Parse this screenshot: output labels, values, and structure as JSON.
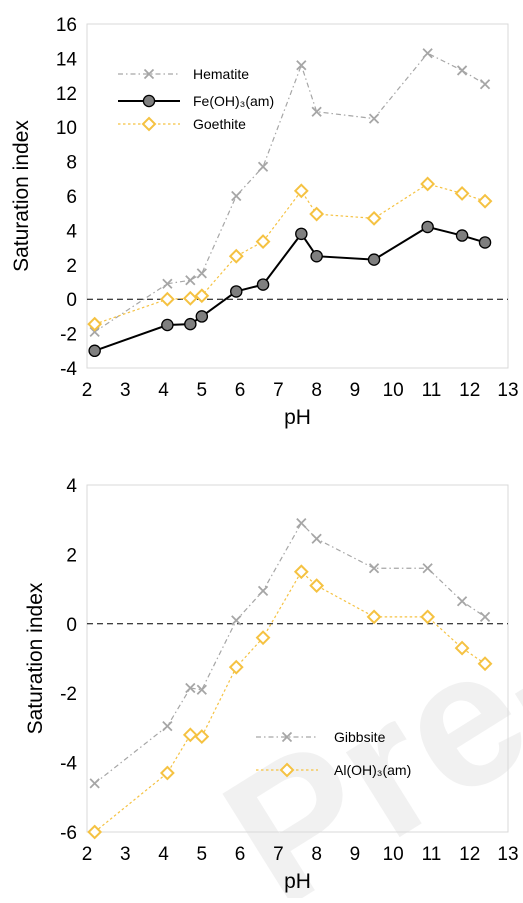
{
  "watermark": "Pre-proof",
  "chart_data": [
    {
      "type": "line",
      "xlabel": "pH",
      "ylabel": "Saturation index",
      "xlim": [
        2,
        13
      ],
      "ylim": [
        -4,
        16
      ],
      "xticks": [
        2,
        3,
        4,
        5,
        6,
        7,
        8,
        9,
        10,
        11,
        12,
        13
      ],
      "yticks": [
        -4,
        -2,
        0,
        2,
        4,
        6,
        8,
        10,
        12,
        14,
        16
      ],
      "reference_line": 0,
      "grid": false,
      "legend_position": "top-left",
      "series": [
        {
          "name": "Hematite",
          "marker": "x",
          "color": "#a6a6a6",
          "line_style": "dash-dot",
          "x": [
            2.2,
            4.1,
            4.7,
            5.0,
            5.9,
            6.6,
            7.6,
            8.0,
            9.5,
            10.9,
            11.8,
            12.4
          ],
          "y": [
            -1.9,
            0.9,
            1.1,
            1.5,
            6.0,
            7.7,
            13.6,
            10.9,
            10.5,
            14.3,
            13.3,
            12.5
          ]
        },
        {
          "name": "Fe(OH)₃(am)",
          "marker": "filled-circle",
          "color": "#000000",
          "marker_fill": "#7f7f7f",
          "line_style": "solid",
          "x": [
            2.2,
            4.1,
            4.7,
            5.0,
            5.9,
            6.6,
            7.6,
            8.0,
            9.5,
            10.9,
            11.8,
            12.4
          ],
          "y": [
            -3.0,
            -1.5,
            -1.45,
            -1.0,
            0.45,
            0.85,
            3.8,
            2.5,
            2.3,
            4.2,
            3.7,
            3.3
          ]
        },
        {
          "name": "Goethite",
          "marker": "open-diamond",
          "color": "#f5c242",
          "line_style": "dotted",
          "x": [
            2.2,
            4.1,
            4.7,
            5.0,
            5.9,
            6.6,
            7.6,
            8.0,
            9.5,
            10.9,
            11.8,
            12.4
          ],
          "y": [
            -1.45,
            0.0,
            0.05,
            0.2,
            2.5,
            3.35,
            6.3,
            4.95,
            4.7,
            6.7,
            6.15,
            5.7
          ]
        }
      ]
    },
    {
      "type": "line",
      "xlabel": "pH",
      "ylabel": "Saturation index",
      "xlim": [
        2,
        13
      ],
      "ylim": [
        -6,
        4
      ],
      "xticks": [
        2,
        3,
        4,
        5,
        6,
        7,
        8,
        9,
        10,
        11,
        12,
        13
      ],
      "yticks": [
        -6,
        -4,
        -2,
        0,
        2,
        4
      ],
      "reference_line": 0,
      "grid": false,
      "legend_position": "bottom-center",
      "series": [
        {
          "name": "Gibbsite",
          "marker": "x",
          "color": "#a6a6a6",
          "line_style": "dash-dot",
          "x": [
            2.2,
            4.1,
            4.7,
            5.0,
            5.9,
            6.6,
            7.6,
            8.0,
            9.5,
            10.9,
            11.8,
            12.4
          ],
          "y": [
            -4.6,
            -2.95,
            -1.85,
            -1.9,
            0.1,
            0.95,
            2.9,
            2.45,
            1.6,
            1.6,
            0.65,
            0.2
          ]
        },
        {
          "name": "Al(OH)₃(am)",
          "marker": "open-diamond",
          "color": "#f5c242",
          "line_style": "dotted",
          "x": [
            2.2,
            4.1,
            4.7,
            5.0,
            5.9,
            6.6,
            7.6,
            8.0,
            9.5,
            10.9,
            11.8,
            12.4
          ],
          "y": [
            -6.0,
            -4.3,
            -3.2,
            -3.25,
            -1.25,
            -0.4,
            1.5,
            1.1,
            0.2,
            0.2,
            -0.7,
            -1.15
          ]
        }
      ]
    }
  ]
}
